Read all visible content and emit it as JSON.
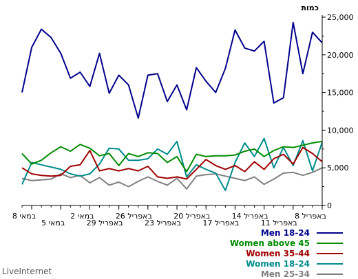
{
  "brand": "LiveInternet",
  "chart_data": {
    "type": "line",
    "y_axis_title": "כמות",
    "ylim": [
      0,
      25000
    ],
    "y_ticks": [
      0,
      2500,
      5000,
      7500,
      10000,
      12500,
      15000,
      17500,
      20000,
      22500,
      25000
    ],
    "y_tick_labels": [
      "0",
      "",
      "5,000",
      "",
      "10,000",
      "",
      "15,000",
      "",
      "20,000",
      "",
      "25,000"
    ],
    "x_axis_direction": "right-to-left",
    "x_tick_labels": [
      {
        "label": "8 באפריל",
        "index": 0
      },
      {
        "label": "11 באפריל",
        "index": 3
      },
      {
        "label": "14 באפריל",
        "index": 6
      },
      {
        "label": "17 באפריל",
        "index": 9
      },
      {
        "label": "20 באפריל",
        "index": 12
      },
      {
        "label": "23 באפריל",
        "index": 15
      },
      {
        "label": "26 באפריל",
        "index": 18
      },
      {
        "label": "29 באפריל",
        "index": 21
      },
      {
        "label": "2 במאי",
        "index": 24
      },
      {
        "label": "5 במאי",
        "index": 27
      },
      {
        "label": "8 במאי",
        "index": 30
      }
    ],
    "grid": false,
    "legend_position": "bottom-right",
    "series": [
      {
        "name": "Men 18-24",
        "color": "#00008b",
        "values": [
          21600,
          23000,
          17500,
          24300,
          14300,
          13600,
          21800,
          20500,
          20900,
          23300,
          18200,
          15000,
          16500,
          18300,
          12700,
          16000,
          13800,
          17500,
          17300,
          11600,
          16000,
          17300,
          14900,
          20200,
          15800,
          17700,
          16900,
          20200,
          22300,
          23400,
          21000,
          15000
        ]
      },
      {
        "name": "Women above 45",
        "color": "#008b00",
        "values": [
          8500,
          8300,
          8000,
          7700,
          7800,
          7300,
          6500,
          7500,
          7200,
          6700,
          6600,
          6600,
          6500,
          6800,
          4500,
          6500,
          5700,
          6900,
          7000,
          6500,
          6900,
          5300,
          6900,
          6600,
          7600,
          8100,
          7200,
          7800,
          7000,
          6000,
          5500,
          6900
        ]
      },
      {
        "name": "Women 35-44",
        "color": "#a00000",
        "values": [
          5800,
          6900,
          7700,
          5500,
          6800,
          6200,
          4800,
          5800,
          4500,
          5300,
          4800,
          5300,
          6100,
          4800,
          3500,
          3800,
          3600,
          3800,
          5200,
          4600,
          4900,
          4600,
          4900,
          4600,
          7300,
          5400,
          5200,
          4000,
          3900,
          4000,
          4200,
          5000
        ]
      },
      {
        "name": "Women 18-24",
        "color": "#008b8b",
        "values": [
          8400,
          4600,
          8600,
          5300,
          7700,
          5000,
          8900,
          6500,
          8300,
          5700,
          2000,
          4300,
          4800,
          5400,
          3800,
          8500,
          6800,
          7500,
          6200,
          6000,
          6000,
          7500,
          7600,
          5500,
          4200,
          3900,
          4200,
          4800,
          5100,
          5400,
          5700,
          2800
        ]
      },
      {
        "name": "Men 25-34",
        "color": "#808080",
        "values": [
          5000,
          4400,
          4000,
          4400,
          4300,
          3500,
          2800,
          3800,
          3300,
          3600,
          3900,
          4200,
          4100,
          3900,
          2200,
          3600,
          2700,
          3200,
          3800,
          3200,
          2500,
          3100,
          2700,
          3700,
          3000,
          4000,
          3700,
          4200,
          3500,
          3400,
          3300,
          3600
        ]
      }
    ]
  }
}
